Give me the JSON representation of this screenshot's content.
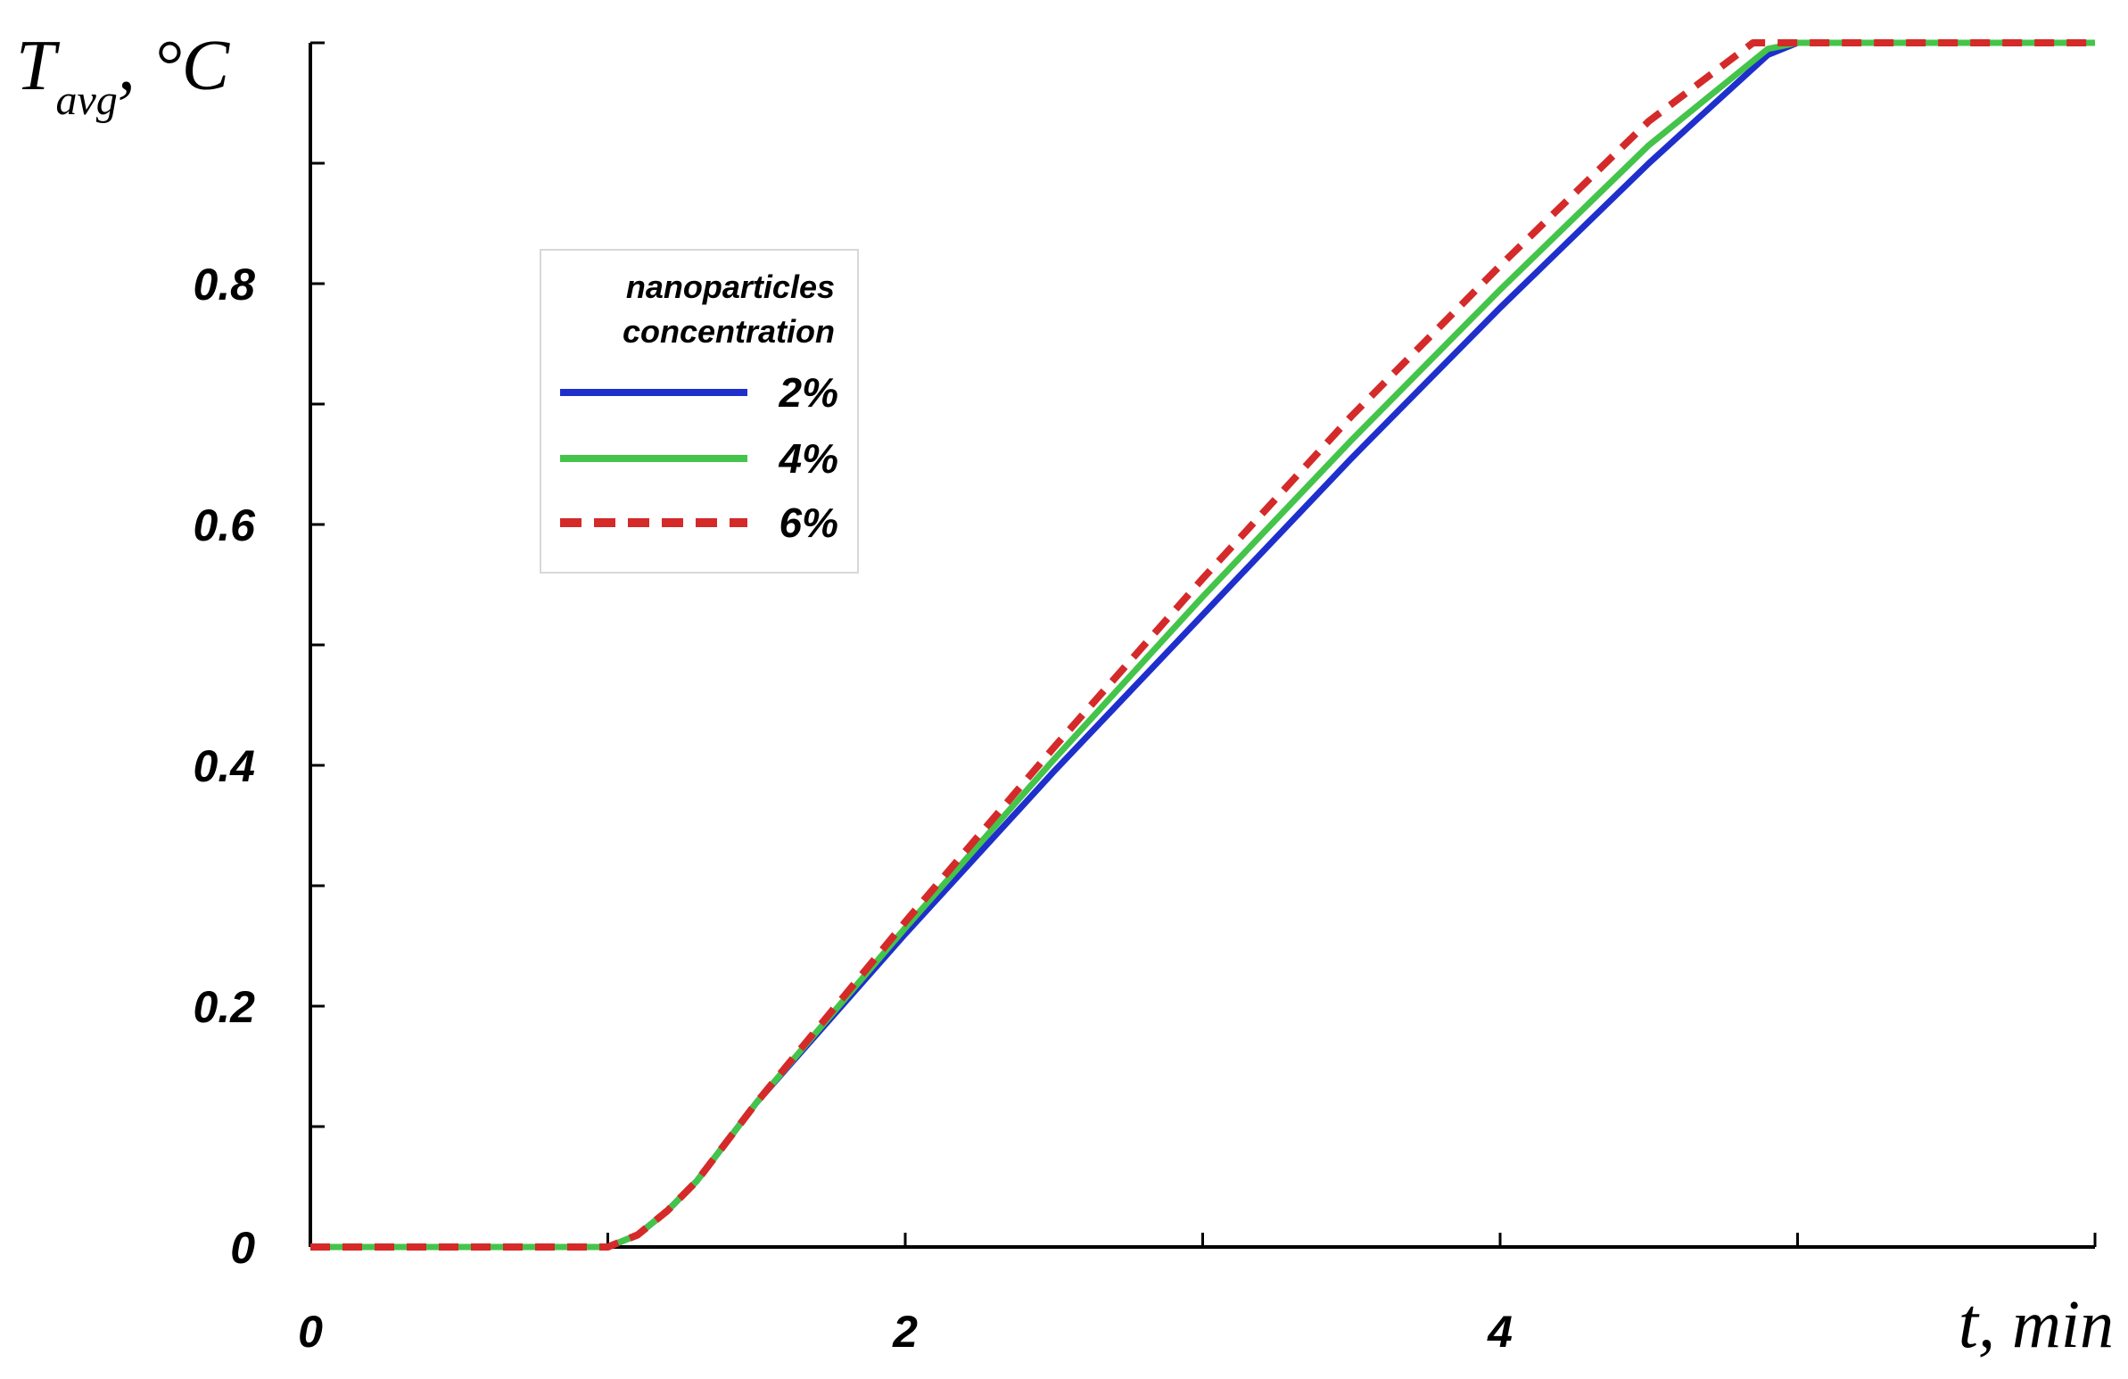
{
  "chart_data": {
    "type": "line",
    "ylabel": {
      "symbol": "T",
      "subscript": "avg",
      "unit": ", °C"
    },
    "xlabel": {
      "symbol": "t",
      "unit": ", min"
    },
    "xlim": [
      0,
      6
    ],
    "ylim": [
      0,
      1
    ],
    "x_ticks": [
      0,
      1,
      2,
      3,
      4,
      5,
      6
    ],
    "x_tick_labels": [
      {
        "value": 0,
        "label": "0"
      },
      {
        "value": 2,
        "label": "2"
      },
      {
        "value": 4,
        "label": "4"
      }
    ],
    "y_ticks": [
      0,
      0.1,
      0.2,
      0.3,
      0.4,
      0.5,
      0.6,
      0.7,
      0.8,
      0.9,
      1.0
    ],
    "y_tick_labels": [
      {
        "value": 0,
        "label": "0"
      },
      {
        "value": 0.2,
        "label": "0.2"
      },
      {
        "value": 0.4,
        "label": "0.4"
      },
      {
        "value": 0.6,
        "label": "0.6"
      },
      {
        "value": 0.8,
        "label": "0.8"
      }
    ],
    "grid": false,
    "legend": {
      "title_lines": [
        "nanoparticles",
        "concentration"
      ],
      "placement": "upper-left"
    },
    "series": [
      {
        "name": "2%",
        "color": "#1f2fcc",
        "style": "solid",
        "x": [
          0,
          1.0,
          1.1,
          1.2,
          1.3,
          1.5,
          2.0,
          2.5,
          3.0,
          3.5,
          4.0,
          4.5,
          4.9,
          5.0,
          5.2,
          6.0
        ],
        "y": [
          0,
          0,
          0.01,
          0.03,
          0.055,
          0.12,
          0.26,
          0.395,
          0.525,
          0.655,
          0.78,
          0.9,
          0.99,
          1.0,
          1.0,
          1.0
        ]
      },
      {
        "name": "4%",
        "color": "#44c44a",
        "style": "solid",
        "x": [
          0,
          1.0,
          1.1,
          1.2,
          1.3,
          1.5,
          2.0,
          2.5,
          3.0,
          3.5,
          4.0,
          4.5,
          4.9,
          5.0,
          5.2,
          6.0
        ],
        "y": [
          0,
          0,
          0.01,
          0.03,
          0.055,
          0.12,
          0.265,
          0.405,
          0.54,
          0.67,
          0.795,
          0.915,
          0.995,
          1.0,
          1.0,
          1.0
        ]
      },
      {
        "name": "6%",
        "color": "#d42a2a",
        "style": "dashed",
        "x": [
          0,
          1.0,
          1.1,
          1.2,
          1.3,
          1.5,
          2.0,
          2.5,
          3.0,
          3.5,
          4.0,
          4.5,
          4.85,
          5.0,
          6.0
        ],
        "y": [
          0,
          0,
          0.01,
          0.03,
          0.055,
          0.12,
          0.27,
          0.415,
          0.555,
          0.69,
          0.815,
          0.935,
          1.0,
          1.0,
          1.0
        ]
      }
    ]
  }
}
